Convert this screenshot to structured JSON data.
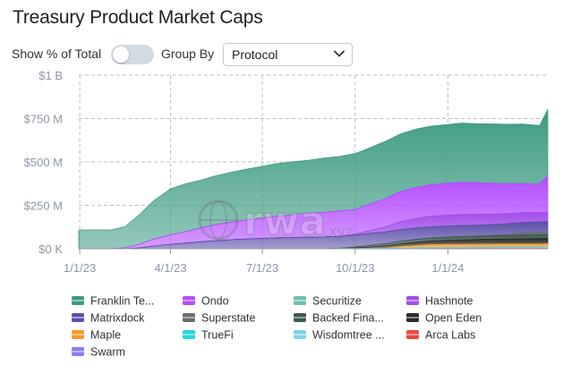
{
  "title": "Treasury Product Market Caps",
  "controls": {
    "show_pct_label": "Show % of Total",
    "show_pct_on": false,
    "group_by_label": "Group By",
    "group_by_value": "Protocol"
  },
  "watermark": {
    "text": "rwa",
    "suffix": ".xyz"
  },
  "chart_data": {
    "type": "area",
    "stacked": true,
    "ylabel": "",
    "xlabel": "",
    "ylim": [
      0,
      1000
    ],
    "y_unit": "M",
    "y_ticks": [
      0,
      250,
      500,
      750,
      1000
    ],
    "y_tick_labels": [
      "$0 K",
      "$250 M",
      "$500 M",
      "$750 M",
      "$1 B"
    ],
    "xlim": [
      "2022-12-31",
      "2024-04-09"
    ],
    "x_ticks": [
      "2023-01-01",
      "2023-04-01",
      "2023-07-01",
      "2023-10-01",
      "2024-01-01"
    ],
    "x_tick_labels": [
      "1/1/23",
      "4/1/23",
      "7/1/23",
      "10/1/23",
      "1/1/24"
    ],
    "grid": true,
    "legend_position": "bottom",
    "x": [
      "2022-12-31",
      "2023-01-15",
      "2023-02-01",
      "2023-02-15",
      "2023-03-01",
      "2023-03-15",
      "2023-04-01",
      "2023-04-15",
      "2023-05-01",
      "2023-05-15",
      "2023-06-01",
      "2023-06-15",
      "2023-07-01",
      "2023-07-15",
      "2023-08-01",
      "2023-08-15",
      "2023-09-01",
      "2023-09-15",
      "2023-10-01",
      "2023-10-15",
      "2023-11-01",
      "2023-11-15",
      "2023-12-01",
      "2023-12-15",
      "2024-01-01",
      "2024-01-15",
      "2024-02-01",
      "2024-02-15",
      "2024-03-01",
      "2024-03-15",
      "2024-04-01",
      "2024-04-09"
    ],
    "series": [
      {
        "name": "Swarm",
        "color": "#8b7cf6",
        "values": [
          0,
          0,
          0,
          0,
          0,
          0,
          0,
          0,
          0,
          0,
          0,
          0,
          0,
          0,
          0,
          0,
          0,
          0,
          0,
          0,
          0,
          0,
          0,
          0,
          0,
          0,
          0,
          0,
          0,
          0,
          0,
          0
        ]
      },
      {
        "name": "Arca Labs",
        "color": "#f0483e",
        "values": [
          0,
          0,
          0,
          0,
          0,
          0,
          0,
          0,
          0,
          0,
          0,
          0,
          0,
          0,
          0,
          0,
          0,
          0,
          0,
          0,
          0,
          0,
          0,
          2,
          2,
          2,
          2,
          2,
          2,
          2,
          2,
          2
        ]
      },
      {
        "name": "Wisdomtree ...",
        "color": "#7fd3e8",
        "values": [
          0,
          0,
          0,
          0,
          0,
          0,
          0,
          0,
          0,
          0,
          0,
          0,
          0,
          0,
          0,
          0,
          0,
          1,
          1,
          2,
          2,
          3,
          3,
          3,
          4,
          4,
          4,
          5,
          5,
          5,
          5,
          6
        ]
      },
      {
        "name": "TrueFi",
        "color": "#22d8dc",
        "values": [
          0,
          0,
          0,
          0,
          0,
          0,
          0,
          0,
          0,
          0,
          0,
          0,
          0,
          0,
          0,
          0,
          0,
          0,
          0,
          0,
          0,
          0,
          1,
          1,
          1,
          1,
          2,
          2,
          2,
          2,
          2,
          2
        ]
      },
      {
        "name": "Maple",
        "color": "#f39a2c",
        "values": [
          0,
          0,
          0,
          0,
          0,
          0,
          0,
          0,
          0,
          0,
          0,
          0,
          0,
          0,
          0,
          0,
          0,
          0,
          0,
          0,
          3,
          10,
          15,
          18,
          19,
          19,
          19,
          19,
          19,
          19,
          19,
          19
        ]
      },
      {
        "name": "Open Eden",
        "color": "#2b2b2b",
        "values": [
          0,
          0,
          0,
          0,
          0,
          0,
          0,
          0,
          0,
          0,
          0,
          0,
          0,
          0,
          0,
          0,
          0,
          0,
          3,
          8,
          12,
          15,
          18,
          20,
          22,
          24,
          26,
          27,
          28,
          29,
          30,
          30
        ]
      },
      {
        "name": "Backed Fina...",
        "color": "#3d5a4e",
        "values": [
          0,
          0,
          0,
          0,
          0,
          0,
          0,
          0,
          0,
          0,
          0,
          0,
          0,
          0,
          0,
          0,
          0,
          2,
          6,
          9,
          12,
          15,
          17,
          18,
          19,
          20,
          20,
          21,
          21,
          22,
          22,
          22
        ]
      },
      {
        "name": "Superstate",
        "color": "#6b6b6b",
        "values": [
          0,
          0,
          0,
          0,
          0,
          0,
          0,
          0,
          0,
          0,
          0,
          0,
          0,
          0,
          0,
          0,
          0,
          0,
          0,
          0,
          0,
          0,
          0,
          0,
          0,
          0,
          0,
          0,
          5,
          10,
          12,
          13
        ]
      },
      {
        "name": "Matrixdock",
        "color": "#5a4fa8",
        "values": [
          0,
          0,
          0,
          0,
          5,
          15,
          25,
          32,
          40,
          46,
          52,
          56,
          60,
          63,
          65,
          67,
          68,
          68,
          69,
          69,
          68,
          67,
          66,
          65,
          64,
          64,
          63,
          63,
          63,
          62,
          62,
          62
        ]
      },
      {
        "name": "Hashnote",
        "color": "#a24de8",
        "values": [
          0,
          0,
          0,
          0,
          0,
          0,
          0,
          0,
          0,
          0,
          0,
          0,
          0,
          0,
          0,
          0,
          0,
          0,
          5,
          15,
          30,
          45,
          55,
          60,
          62,
          63,
          62,
          60,
          58,
          56,
          55,
          55
        ]
      },
      {
        "name": "Ondo",
        "color": "#b34cff",
        "values": [
          0,
          0,
          0,
          5,
          20,
          40,
          55,
          65,
          80,
          92,
          102,
          110,
          117,
          124,
          131,
          137,
          142,
          147,
          142,
          152,
          164,
          175,
          180,
          182,
          185,
          187,
          182,
          178,
          172,
          168,
          165,
          210
        ]
      },
      {
        "name": "Securitize",
        "color": "#6fbfae",
        "values": [
          0,
          0,
          0,
          0,
          0,
          0,
          0,
          0,
          0,
          0,
          0,
          0,
          0,
          0,
          0,
          0,
          0,
          0,
          0,
          0,
          0,
          0,
          0,
          0,
          0,
          0,
          0,
          0,
          0,
          0,
          1,
          2
        ]
      },
      {
        "name": "Franklin Te...",
        "color": "#3d9b82",
        "values": [
          108,
          108,
          108,
          122,
          170,
          220,
          265,
          275,
          275,
          281,
          287,
          292,
          298,
          303,
          305,
          305,
          313,
          313,
          322,
          325,
          330,
          332,
          335,
          337,
          338,
          340,
          340,
          342,
          342,
          343,
          335,
          380
        ]
      }
    ]
  },
  "legend": [
    {
      "label": "Franklin Te...",
      "color": "#3d9b82"
    },
    {
      "label": "Ondo",
      "color": "#b34cff"
    },
    {
      "label": "Securitize",
      "color": "#6fbfae"
    },
    {
      "label": "Hashnote",
      "color": "#a24de8"
    },
    {
      "label": "Matrixdock",
      "color": "#5a4fa8"
    },
    {
      "label": "Superstate",
      "color": "#6b6b6b"
    },
    {
      "label": "Backed Fina...",
      "color": "#3d5a4e"
    },
    {
      "label": "Open Eden",
      "color": "#2b2b2b"
    },
    {
      "label": "Maple",
      "color": "#f39a2c"
    },
    {
      "label": "TrueFi",
      "color": "#22d8dc"
    },
    {
      "label": "Wisdomtree ...",
      "color": "#7fd3e8"
    },
    {
      "label": "Arca Labs",
      "color": "#f0483e"
    },
    {
      "label": "Swarm",
      "color": "#8b7cf6"
    }
  ]
}
